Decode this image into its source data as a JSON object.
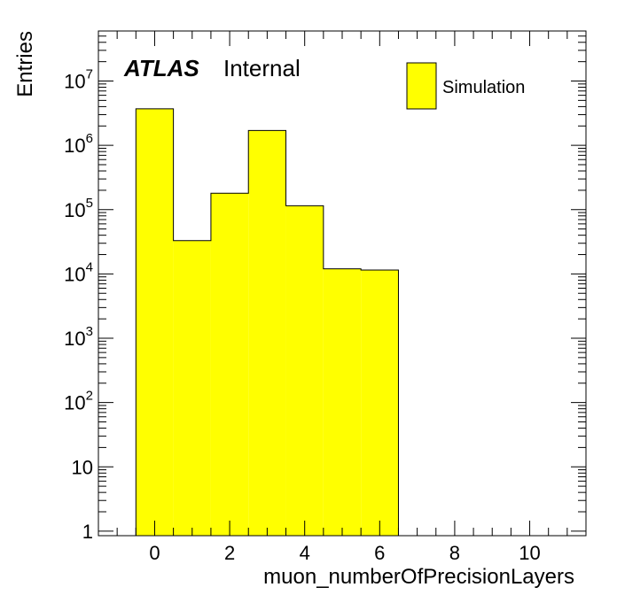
{
  "labels": {
    "experiment": "ATLAS",
    "status": "Internal"
  },
  "legend": {
    "entries": [
      "Simulation"
    ],
    "placement": "top-right"
  },
  "colors": {
    "fill": "#ffff00",
    "line": "#000000",
    "background": "#ffffff"
  },
  "chart_data": {
    "type": "bar",
    "subtype": "histogram",
    "xlabel": "muon_numberOfPrecisionLayers",
    "ylabel": "Entries",
    "xlim": [
      -1.5,
      11.5
    ],
    "ylim": [
      0.85,
      60000000
    ],
    "yscale": "log",
    "grid": false,
    "bin_width": 1,
    "bin_centers": [
      0,
      1,
      2,
      3,
      4,
      5,
      6
    ],
    "series": [
      {
        "name": "Simulation",
        "values": [
          3700000,
          33000,
          180000,
          1700000,
          115000,
          12000,
          11500
        ]
      }
    ],
    "x_ticks": [
      0,
      2,
      4,
      6,
      8,
      10
    ],
    "y_ticks": [
      {
        "value": 1,
        "base": "1",
        "exp": ""
      },
      {
        "value": 10,
        "base": "10",
        "exp": ""
      },
      {
        "value": 100,
        "base": "10",
        "exp": "2"
      },
      {
        "value": 1000,
        "base": "10",
        "exp": "3"
      },
      {
        "value": 10000,
        "base": "10",
        "exp": "4"
      },
      {
        "value": 100000,
        "base": "10",
        "exp": "5"
      },
      {
        "value": 1000000,
        "base": "10",
        "exp": "6"
      },
      {
        "value": 10000000,
        "base": "10",
        "exp": "7"
      }
    ]
  }
}
